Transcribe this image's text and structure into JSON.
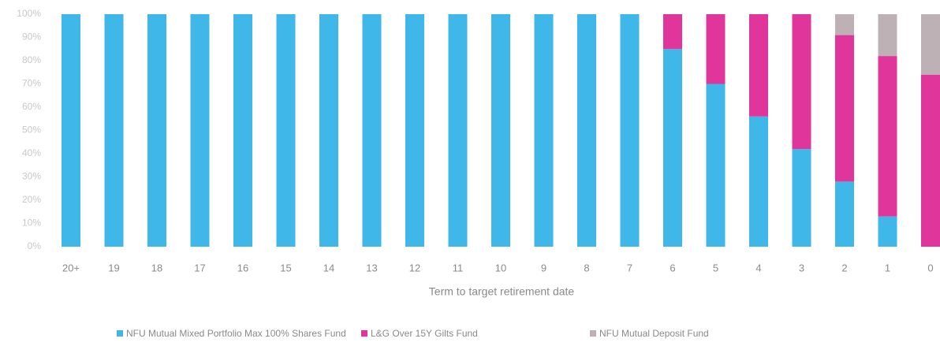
{
  "chart_data": {
    "type": "stacked_bar",
    "x_label": "Term to target retirement date",
    "categories": [
      "20+",
      "19",
      "18",
      "17",
      "16",
      "15",
      "14",
      "13",
      "12",
      "11",
      "10",
      "9",
      "8",
      "7",
      "6",
      "5",
      "4",
      "3",
      "2",
      "1",
      "0"
    ],
    "series": [
      {
        "name": "NFU Mutual Mixed Portfolio Max 100% Shares Fund",
        "color": "#3fb8e9",
        "values": [
          100,
          100,
          100,
          100,
          100,
          100,
          100,
          100,
          100,
          100,
          100,
          100,
          100,
          100,
          85,
          70,
          56,
          42,
          28,
          13,
          0
        ]
      },
      {
        "name": "L&G Over 15Y Gilts Fund",
        "color": "#e0359b",
        "values": [
          0,
          0,
          0,
          0,
          0,
          0,
          0,
          0,
          0,
          0,
          0,
          0,
          0,
          0,
          15,
          30,
          44,
          58,
          63,
          69,
          74
        ]
      },
      {
        "name": "NFU Mutual Deposit Fund",
        "color": "#bdb1b6",
        "values": [
          0,
          0,
          0,
          0,
          0,
          0,
          0,
          0,
          0,
          0,
          0,
          0,
          0,
          0,
          0,
          0,
          0,
          0,
          9,
          18,
          26
        ]
      }
    ],
    "ylim": [
      0,
      100
    ],
    "yticks": [
      {
        "value": 0,
        "label": "0%"
      },
      {
        "value": 10,
        "label": "10%"
      },
      {
        "value": 20,
        "label": "20%"
      },
      {
        "value": 30,
        "label": "30%"
      },
      {
        "value": 40,
        "label": "40%"
      },
      {
        "value": 50,
        "label": "50%"
      },
      {
        "value": 60,
        "label": "60%"
      },
      {
        "value": 70,
        "label": "70%"
      },
      {
        "value": 80,
        "label": "80%"
      },
      {
        "value": 90,
        "label": "90%"
      },
      {
        "value": 100,
        "label": "100%"
      }
    ],
    "legend": "bottom"
  }
}
